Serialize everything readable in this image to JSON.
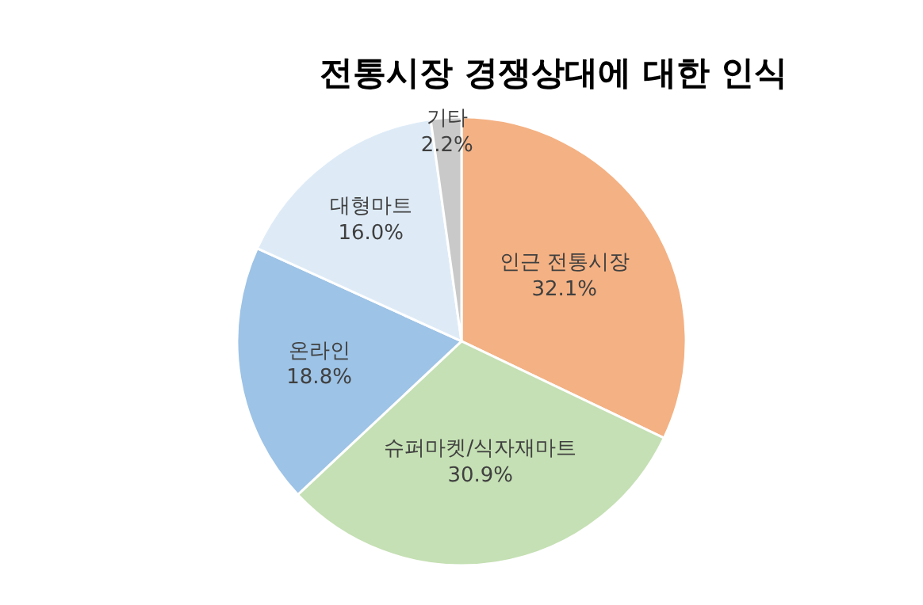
{
  "chart_data": {
    "type": "pie",
    "title": "전통시장 경쟁상대에 대한 인식",
    "categories": [
      "인근 전통시장",
      "슈퍼마켓/식자재마트",
      "온라인",
      "대형마트",
      "기타"
    ],
    "values": [
      32.1,
      30.9,
      18.8,
      16.0,
      2.2
    ],
    "colors": [
      "#f4b183",
      "#c5e0b4",
      "#9dc3e6",
      "#deebf7",
      "#c9c9c9"
    ],
    "value_labels": [
      "32.1%",
      "30.9%",
      "18.8%",
      "16.0%",
      "2.2%"
    ],
    "legend": false
  }
}
